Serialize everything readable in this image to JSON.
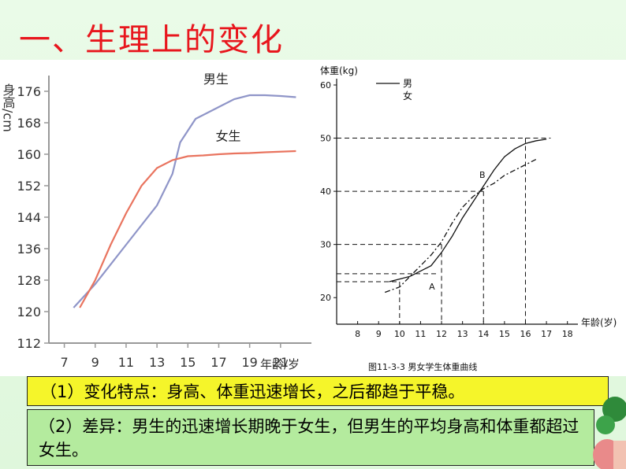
{
  "title": "一、生理上的变化",
  "chart_data": [
    {
      "type": "line",
      "ylabel": "身高/cm",
      "xlabel": "年龄/岁",
      "x_ticks": [
        7,
        9,
        11,
        13,
        15,
        17,
        19,
        21
      ],
      "y_ticks": [
        112,
        120,
        128,
        136,
        144,
        152,
        160,
        168,
        176
      ],
      "xlim": [
        6,
        23
      ],
      "ylim": [
        112,
        180
      ],
      "series": [
        {
          "name": "男生",
          "color": "#8f95c8",
          "x": [
            7.6,
            9,
            11,
            13,
            14,
            14.5,
            15.5,
            17,
            18,
            19,
            20,
            21,
            22
          ],
          "y": [
            121,
            127,
            137,
            147,
            155,
            163,
            169,
            172,
            174,
            175,
            175,
            174.8,
            174.5
          ]
        },
        {
          "name": "女生",
          "color": "#e9745f",
          "x": [
            8,
            9,
            10,
            11,
            12,
            13,
            14,
            15,
            16,
            17,
            18,
            19,
            20,
            22
          ],
          "y": [
            121,
            128,
            137,
            145,
            152,
            156.5,
            158.5,
            159.5,
            159.7,
            160,
            160.2,
            160.3,
            160.5,
            160.8
          ]
        }
      ]
    },
    {
      "type": "line",
      "ylabel": "体重(kg)",
      "xlabel": "年龄(岁)",
      "caption": "图11-3-3 男女学生体重曲线",
      "x_ticks": [
        8,
        9,
        10,
        11,
        12,
        13,
        14,
        15,
        16,
        17,
        18
      ],
      "y_ticks": [
        20,
        30,
        40,
        50,
        60
      ],
      "xlim": [
        7,
        18.5
      ],
      "ylim": [
        15,
        60
      ],
      "legend_labels": [
        "男",
        "女"
      ],
      "point_labels": [
        "A",
        "B"
      ],
      "series": [
        {
          "name": "男",
          "style": "solid",
          "x": [
            9.5,
            10,
            10.5,
            11,
            11.5,
            12,
            12.5,
            13,
            13.5,
            14,
            14.5,
            15,
            15.5,
            16,
            16.5,
            17
          ],
          "y": [
            23,
            23.5,
            24,
            25,
            26,
            28.5,
            31.5,
            35,
            38,
            41,
            44,
            46.5,
            48,
            49,
            49.5,
            49.8
          ]
        },
        {
          "name": "女",
          "style": "dash-dot",
          "x": [
            9.3,
            10,
            10.5,
            11,
            11.5,
            12,
            12.5,
            13,
            13.5,
            14,
            14.5,
            15,
            15.5,
            16,
            16.5
          ],
          "y": [
            21,
            22,
            24,
            26,
            28,
            30.5,
            34,
            37,
            39,
            40.5,
            41.5,
            43,
            44,
            45,
            46
          ]
        }
      ]
    }
  ],
  "point1": "（1）变化特点：身高、体重迅速增长，之后都趋于平稳。",
  "point2": "（2）差异：男生的迅速增长期晚于女生，但男生的平均身高和体重都超过女生。"
}
